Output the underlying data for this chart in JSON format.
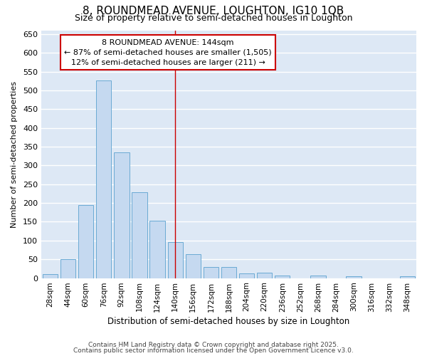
{
  "title1": "8, ROUNDMEAD AVENUE, LOUGHTON, IG10 1QB",
  "title2": "Size of property relative to semi-detached houses in Loughton",
  "xlabel": "Distribution of semi-detached houses by size in Loughton",
  "ylabel": "Number of semi-detached properties",
  "categories": [
    "28sqm",
    "44sqm",
    "60sqm",
    "76sqm",
    "92sqm",
    "108sqm",
    "124sqm",
    "140sqm",
    "156sqm",
    "172sqm",
    "188sqm",
    "204sqm",
    "220sqm",
    "236sqm",
    "252sqm",
    "268sqm",
    "284sqm",
    "300sqm",
    "316sqm",
    "332sqm",
    "348sqm"
  ],
  "values": [
    10,
    50,
    195,
    527,
    335,
    228,
    153,
    95,
    63,
    30,
    30,
    12,
    14,
    6,
    0,
    6,
    0,
    5,
    0,
    0,
    5
  ],
  "bar_color": "#c5d9f0",
  "bar_edge_color": "#6aaad4",
  "highlight_index": 7,
  "highlight_line_color": "#cc0000",
  "annotation_line1": "8 ROUNDMEAD AVENUE: 144sqm",
  "annotation_line2": "← 87% of semi-detached houses are smaller (1,505)",
  "annotation_line3": "12% of semi-detached houses are larger (211) →",
  "annotation_box_color": "white",
  "annotation_box_edge_color": "#cc0000",
  "ylim": [
    0,
    660
  ],
  "yticks": [
    0,
    50,
    100,
    150,
    200,
    250,
    300,
    350,
    400,
    450,
    500,
    550,
    600,
    650
  ],
  "plot_bg_color": "#dde8f5",
  "fig_bg_color": "#ffffff",
  "grid_color": "#ffffff",
  "footer1": "Contains HM Land Registry data © Crown copyright and database right 2025.",
  "footer2": "Contains public sector information licensed under the Open Government Licence v3.0."
}
